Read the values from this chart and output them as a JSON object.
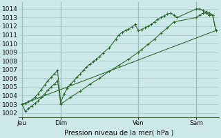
{
  "bg_color": "#cce8e8",
  "grid_color": "#aacccc",
  "line_color": "#2d6a2d",
  "marker_color": "#2d6a2d",
  "title": "Pression niveau de la mer( hPa )",
  "ylim": [
    1001.5,
    1014.8
  ],
  "yticks": [
    1002,
    1003,
    1004,
    1005,
    1006,
    1007,
    1008,
    1009,
    1010,
    1011,
    1012,
    1013,
    1014
  ],
  "xtick_labels": [
    "Jeu",
    "Dim",
    "Ven",
    "Sam"
  ],
  "xtick_positions": [
    0,
    24,
    72,
    108
  ],
  "xlim": [
    -2,
    122
  ],
  "vline_positions": [
    0,
    24,
    72,
    108
  ],
  "series1_x": [
    0,
    2,
    4,
    6,
    8,
    10,
    12,
    14,
    16,
    18,
    20,
    22,
    24,
    26,
    28,
    30,
    32,
    34,
    36,
    38,
    40,
    42,
    44,
    46,
    48,
    50,
    54,
    58,
    60,
    62,
    64,
    66,
    68,
    70,
    72,
    74,
    76,
    78,
    80,
    82,
    84,
    86,
    88,
    90,
    92,
    94,
    96,
    108,
    110,
    112,
    114,
    116,
    118,
    120
  ],
  "series1_y": [
    1003.0,
    1003.1,
    1003.3,
    1003.5,
    1003.8,
    1004.2,
    1004.7,
    1005.2,
    1005.7,
    1006.1,
    1006.5,
    1006.9,
    1003.2,
    1004.2,
    1004.8,
    1005.3,
    1005.7,
    1006.1,
    1006.5,
    1006.9,
    1007.3,
    1007.6,
    1007.9,
    1008.2,
    1008.5,
    1008.9,
    1009.5,
    1010.5,
    1011.0,
    1011.3,
    1011.5,
    1011.7,
    1011.9,
    1012.2,
    1011.5,
    1011.6,
    1011.8,
    1012.0,
    1012.2,
    1012.5,
    1012.8,
    1013.0,
    1013.2,
    1013.4,
    1013.5,
    1013.3,
    1013.0,
    1014.0,
    1014.0,
    1013.8,
    1013.5,
    1013.3,
    1013.3,
    1011.5
  ],
  "series2_x": [
    0,
    2,
    4,
    6,
    8,
    10,
    12,
    14,
    16,
    18,
    20,
    22,
    24,
    30,
    36,
    42,
    48,
    54,
    60,
    66,
    72,
    74,
    78,
    82,
    86,
    90,
    94,
    108,
    110,
    112,
    114,
    116,
    118,
    120
  ],
  "series2_y": [
    1003.0,
    1002.2,
    1002.5,
    1002.8,
    1003.1,
    1003.4,
    1003.8,
    1004.2,
    1004.6,
    1005.0,
    1005.3,
    1005.7,
    1003.0,
    1003.8,
    1004.5,
    1005.3,
    1006.0,
    1006.8,
    1007.5,
    1008.2,
    1009.0,
    1009.3,
    1009.9,
    1010.5,
    1011.2,
    1011.8,
    1012.5,
    1013.0,
    1013.3,
    1013.5,
    1013.7,
    1013.5,
    1013.3,
    1011.5
  ],
  "series3_x": [
    0,
    120
  ],
  "series3_y": [
    1003.0,
    1011.5
  ]
}
